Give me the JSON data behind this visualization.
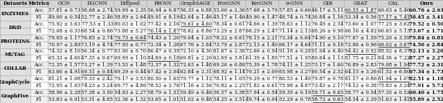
{
  "columns": [
    "Datasets",
    "Metrics",
    "GCN",
    "DGCNN",
    "Diffpool",
    "RWNN",
    "GraphSAGE",
    "ProtGNN",
    "KerGNN",
    "π-GNN",
    "GIB",
    "GSAT",
    "CAL",
    "Ours"
  ],
  "datasets": [
    "ENZYMES",
    "D&D",
    "PROTEINS",
    "MUTAG",
    "COLLAB",
    "GraphCycle",
    "GraphFive"
  ],
  "metrics": [
    "Acc.",
    "F1"
  ],
  "data": {
    "ENZYMES": {
      "Acc.": [
        "57.81 ± 0.73",
        "58.68 ± 2.74",
        "59.99 ± 2.35",
        "56.94 ± 0.87",
        "56.33 ± 0.88",
        "55.00 ± 2.36",
        "57.68 ± 3.79",
        "57.85 ± 0.66",
        "46.17 ± 5.11",
        "60.55 ± 1.87",
        "60.03 ± 5.40",
        "60.76 ± 2.61"
      ],
      "F1": [
        "49.00 ± 0.54",
        "52.77 ± 2.46",
        "58.89 ± 2.64",
        "49.91 ± 8.19",
        "42.64 ± 1.46",
        "45.17 ± 1.46",
        "49.90 ± 1.47",
        "48.74 ± 0.74",
        "30.84 ± 1.16",
        "53.34 ± 0.56",
        "57.17 ± 7.41",
        "58.45 ± 3.41"
      ]
    },
    "D&D": {
      "Acc.": [
        "75.92 ± 3.63",
        "77.53 ± 1.33",
        "80.03 ± 1.02",
        "77.42 ± 2.16",
        "79.61 ± 4.60",
        "78.34 ± 0.61",
        "74.66 ± 1.39",
        "78.63 ± 1.12",
        "76.49 ± 2.54",
        "73.60 ± 1.07",
        "77.25 ± 3.62",
        "79.52 ± 0.50"
      ],
      "F1": [
        "72.08 ± 0.33",
        "68.54 ± 0.86",
        "73.88 ± 5.27",
        "76.14 ± 1.87",
        "78.62 ± 8.86",
        "73.29 ± 2.87",
        "66.29 ± 2.47",
        "71.14 ± 2.13",
        "68.26 ± 0.98",
        "66.16 ± 4.82",
        "66.65 ± 5.13",
        "73.67 ± 1.71"
      ]
    },
    "PROTEINS": {
      "Acc.": [
        "79.05 ± 1.17",
        "76.85 ± 2.74",
        "79.73 ± 0.64",
        "74.43 ± 1.20",
        "79.04 ± 1.03",
        "78.22 ± 0.61",
        "78.15 ± 2.21",
        "73.34 ± 0.64",
        "74.90 ± 5.10",
        "77.67 ± 1.59",
        "75.20 ± 3.59",
        "79.84 ± 0.81"
      ],
      "F1": [
        "70.97 ± 2.89",
        "73.19 ± 4.74",
        "77.95 ± 0.77",
        "72.34 ± 1.28",
        "67.76 ± 2.84",
        "73.79 ± 2.87",
        "72.13 ± 1.40",
        "66.17 ± 4.64",
        "71.11 ± 0.18",
        "72.86 ± 0.96",
        "66.02 ± 3.67",
        "74.50 ± 2.84"
      ]
    },
    "MUTAG": {
      "Acc.": [
        "74.32 ± 8.10",
        "56.34 ± 0.77",
        "83.90 ± 9.70",
        "86.47 ± 0.39",
        "72.10 ± 4.30",
        "81.67 ± 2.36",
        "72.66 ± 0.94",
        "91.18 ± 0.28",
        "91.04 ± 6.40",
        "94.42 ± 0.92",
        "88.92 ± 8.37",
        "92.13 ± 3.26"
      ],
      "F1": [
        "65.33 ± 4.60",
        "47.35 ± 0.67",
        "69.99 ± 1.10",
        "84.69 ± 0.18",
        "69.81 ± 2.20",
        "62.69 ± 3.81",
        "61.39 ± 1.89",
        "77.51 ± 1.95",
        "80.64 ± 1.13",
        "81.75 ± 0.21",
        "84.36 ± 7.22",
        "87.27 ± 2.27"
      ]
    },
    "COLLAB": {
      "Acc.": [
        "72.35 ± 1.57",
        "73.27 ± 1.39",
        "73.53 ± 1.48",
        "72.37 ± 1.32",
        "72.63 ± 1.48",
        "69.26 ± 0.86",
        "75.39 ± 1.78",
        "74.11 ± 1.25",
        "73.17 ± 1.60",
        "76.89 ± 2.83",
        "79.08 ± 1.94",
        "77.72 ± 2.31"
      ],
      "F1": [
        "63.66 ± 4.91",
        "69.51 ± 0.84",
        "69.29 ± 0.44",
        "67.42 ± 2.04",
        "62.84 ± 2.31",
        "68.92 ± 1.14",
        "70.21 ± 2.09",
        "65.98 ± 3.27",
        "60.54 ± 2.52",
        "64.15 ± 3.26",
        "61.52 ± 6.80",
        "67.34 ± 1.73"
      ]
    },
    "GraphCycle": {
      "Acc.": [
        "81.21 ± 1.08",
        "79.33 ± 2.42",
        "79.17 ± 3.53",
        "80.50 ± 1.65",
        "79.77 ± 1.12",
        "78.11 ± 1.05",
        "79.29 ± 0.77",
        "80.53 ± 1.49",
        "79.87 ± 0.78",
        "81.17 ± 0.86",
        "81.94 ± 1.07",
        "82.51 ± 1.18"
      ],
      "F1": [
        "72.95 ± 1.03",
        "74.23 ± 3.24",
        "69.77 ± 4.86",
        "78.52 ± 2.76",
        "71.16 ± 2.56",
        "70.82 ± 2.25",
        "71.82 ± 0.61",
        "75.98 ± 4.87",
        "73.43 ± 2.17",
        "74.12 ± 0.38",
        "75.83 ± 3.24",
        "77.91 ± 5.73"
      ]
    },
    "GraphFive": {
      "Acc.": [
        "58.96 ± 2.28",
        "57.38 ± 3.50",
        "54.93 ± 2.27",
        "58.79 ± 1.51",
        "59.49 ± 0.46",
        "56.57 ± 3.38",
        "57.94 ± 0.54",
        "59.39 ± 0.19",
        "59.71 ± 0.65",
        "58.77 ± 0.54",
        "57.35 ± 0.52",
        "60.40 ± 1.75"
      ],
      "F1": [
        "53.83 ± 0.91",
        "53.31 ± 4.85",
        "52.36 ± 1.32",
        "53.65 ± 1.01",
        "51.02 ± 0.48",
        "54.25 ± 3.51",
        "49.74 ± 0.04",
        "52.29 ± 0.78",
        "58.72 ± 0.63",
        "54.54 ± 2.39",
        "51.63 ± 1.41",
        "55.89 ± 2.52"
      ]
    }
  },
  "underline": {
    "ENZYMES": {
      "Acc.": 9,
      "F1": 10
    },
    "D&D": {
      "Acc.": 4,
      "F1": 3
    },
    "PROTEINS": {
      "Acc.": 2,
      "F1": 10
    },
    "MUTAG": {
      "Acc.": 9,
      "F1": 3
    },
    "COLLAB": {
      "Acc.": 10,
      "F1": 1
    },
    "GraphCycle": {
      "Acc.": 10,
      "F1": -1
    },
    "GraphFive": {
      "Acc.": 8,
      "F1": 8
    }
  },
  "bold_ours": true,
  "header_bg": "#d4d4d4",
  "row_bg_odd": "#f0f0f0",
  "row_bg_even": "#ffffff",
  "dataset_bg": "#e0e0e0",
  "font_size": 5.0,
  "header_font_size": 5.2
}
